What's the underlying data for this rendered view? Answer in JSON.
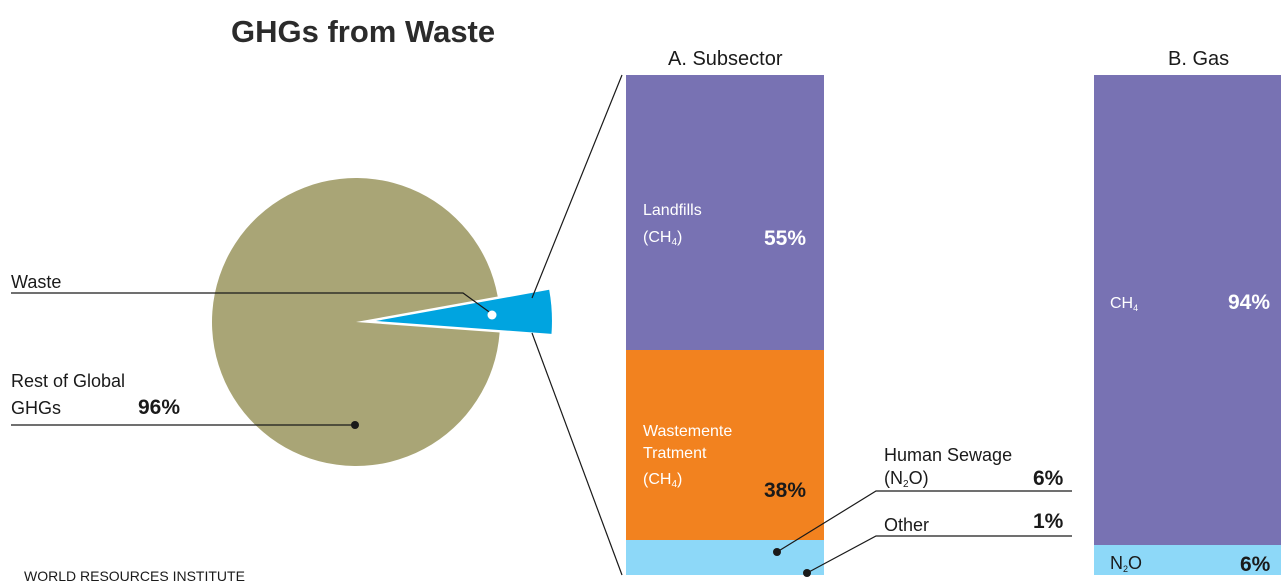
{
  "title": "GHGs from Waste",
  "source": "WORLD RESOURCES INSTITUTE",
  "colors": {
    "pie_rest": "#a9a576",
    "pie_waste": "#00a4e0",
    "landfills": "#7872b3",
    "wastewater": "#f2821f",
    "light_blue": "#8dd8f8",
    "ch4": "#7872b3",
    "n2o": "#8dd8f8"
  },
  "chart_data": [
    {
      "type": "pie",
      "title": "",
      "slices": [
        {
          "key": "waste",
          "label": "Waste",
          "value": 4,
          "pct_label": ""
        },
        {
          "key": "rest",
          "label_line1": "Rest of Global",
          "label_line2": "GHGs",
          "value": 96,
          "pct_label": "96%"
        }
      ]
    },
    {
      "type": "bar",
      "stacked": true,
      "title": "A. Subsector",
      "segments": [
        {
          "key": "landfills",
          "line1": "Landfills",
          "gas_base": "(CH",
          "gas_sub": "4",
          "gas_end": ")",
          "value": 55,
          "pct_label": "55%"
        },
        {
          "key": "wastewater",
          "line1": "Wastemente",
          "line2": "Tratment",
          "gas_base": "(CH",
          "gas_sub": "4",
          "gas_end": ")",
          "value": 38,
          "pct_label": "38%"
        },
        {
          "key": "sewage",
          "line1": "Human Sewage",
          "gas_base": "(N",
          "gas_sub": "2",
          "gas_end": "O)",
          "value": 6,
          "pct_label": "6%"
        },
        {
          "key": "other",
          "line1": "Other",
          "value": 1,
          "pct_label": "1%"
        }
      ]
    },
    {
      "type": "bar",
      "stacked": true,
      "title": "B. Gas",
      "segments": [
        {
          "key": "ch4",
          "gas_base": "CH",
          "gas_sub": "4",
          "gas_end": "",
          "value": 94,
          "pct_label": "94%"
        },
        {
          "key": "n2o",
          "gas_base": "N",
          "gas_sub": "2",
          "gas_end": "O",
          "value": 6,
          "pct_label": "6%"
        }
      ]
    }
  ]
}
